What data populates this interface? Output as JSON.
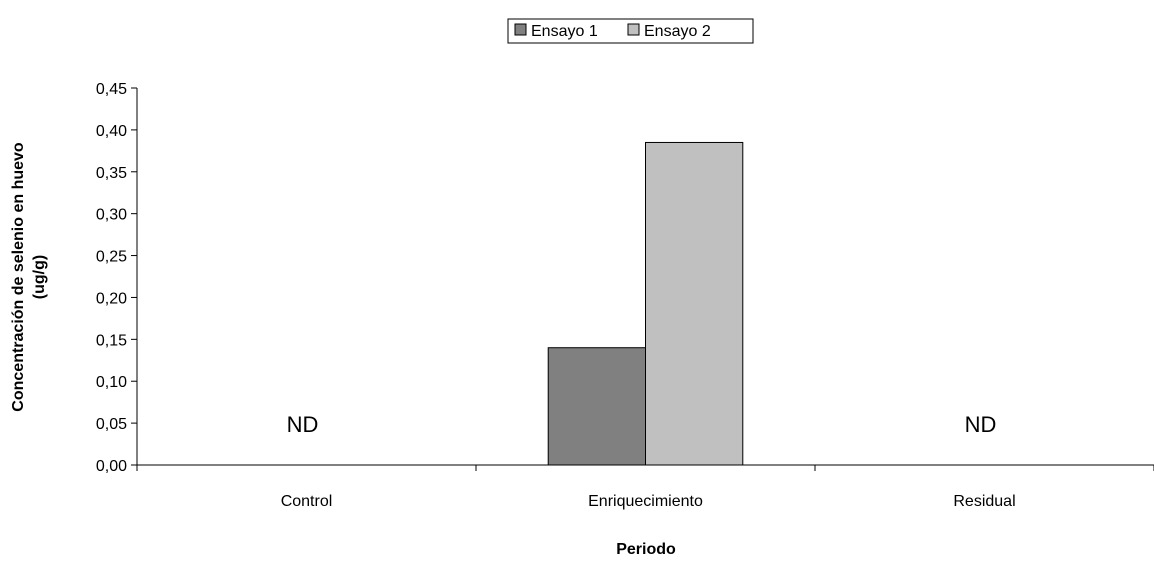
{
  "chart_data": {
    "type": "bar",
    "categories": [
      "Control",
      "Enriquecimiento",
      "Residual"
    ],
    "series": [
      {
        "name": "Ensayo 1",
        "values": [
          null,
          0.14,
          null
        ],
        "color": "#808080"
      },
      {
        "name": "Ensayo 2",
        "values": [
          null,
          0.385,
          null
        ],
        "color": "#c0c0c0"
      }
    ],
    "xlabel": "Periodo",
    "ylabel_lines": [
      "Concentración de selenio en huevo",
      "(ug/g)"
    ],
    "ylim": [
      0,
      0.45
    ],
    "ytick_values": [
      0,
      0.05,
      0.1,
      0.15,
      0.2,
      0.25,
      0.3,
      0.35,
      0.4,
      0.45
    ],
    "ytick_labels": [
      "0,00",
      "0,05",
      "0,10",
      "0,15",
      "0,20",
      "0,25",
      "0,30",
      "0,35",
      "0,40",
      "0,45"
    ],
    "annotations": [
      {
        "category": "Control",
        "text": "ND"
      },
      {
        "category": "Residual",
        "text": "ND"
      }
    ],
    "legend_position": "top-center",
    "grid": false
  }
}
